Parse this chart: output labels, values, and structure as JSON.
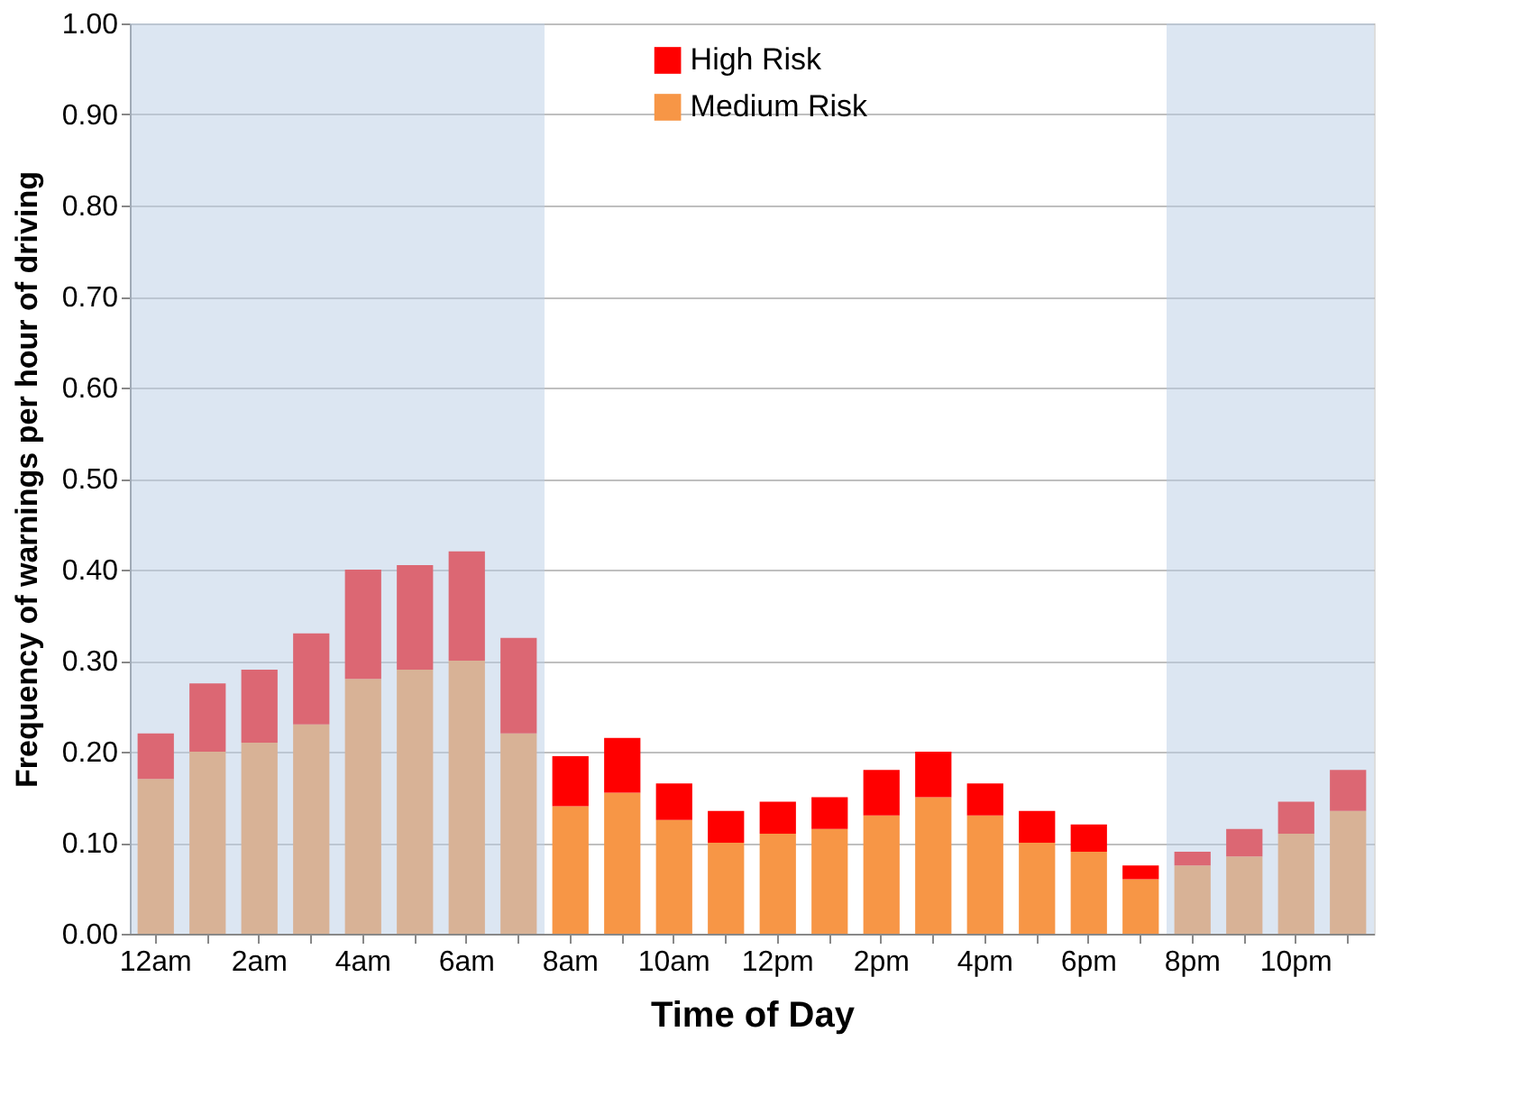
{
  "chart_data": {
    "type": "bar",
    "stacked": true,
    "xlabel": "Time of Day",
    "ylabel": "Frequency of warnings per hour of driving",
    "categories": [
      "12am",
      null,
      "2am",
      null,
      "4am",
      null,
      "6am",
      null,
      "8am",
      null,
      "10am",
      null,
      "12pm",
      null,
      "2pm",
      null,
      "4pm",
      null,
      "6pm",
      null,
      "8pm",
      null,
      "10pm",
      null
    ],
    "series": [
      {
        "name": "Medium Risk",
        "color": "#f79646",
        "values": [
          0.17,
          0.2,
          0.21,
          0.23,
          0.28,
          0.29,
          0.3,
          0.22,
          0.14,
          0.155,
          0.125,
          0.1,
          0.11,
          0.115,
          0.13,
          0.15,
          0.13,
          0.1,
          0.09,
          0.06,
          0.075,
          0.085,
          0.11,
          0.135
        ]
      },
      {
        "name": "High Risk",
        "color": "#ff0000",
        "values": [
          0.05,
          0.075,
          0.08,
          0.1,
          0.12,
          0.115,
          0.12,
          0.105,
          0.055,
          0.06,
          0.04,
          0.035,
          0.035,
          0.035,
          0.05,
          0.05,
          0.035,
          0.035,
          0.03,
          0.015,
          0.015,
          0.03,
          0.035,
          0.045
        ]
      }
    ],
    "ylim": [
      0,
      1
    ],
    "yticks": [
      {
        "value": 0,
        "label": "0.00"
      },
      {
        "value": 0.1,
        "label": "0.10"
      },
      {
        "value": 0.2,
        "label": "0.20"
      },
      {
        "value": 0.3,
        "label": "0.30"
      },
      {
        "value": 0.4,
        "label": "0.40"
      },
      {
        "value": 0.5,
        "label": "0.50"
      },
      {
        "value": 0.6,
        "label": "0.60"
      },
      {
        "value": 0.7,
        "label": "0.70"
      },
      {
        "value": 0.8,
        "label": "0.80"
      },
      {
        "value": 0.9,
        "label": "0.90"
      },
      {
        "value": 1,
        "label": "1.00"
      }
    ],
    "grid": "y",
    "legend": "top"
  }
}
